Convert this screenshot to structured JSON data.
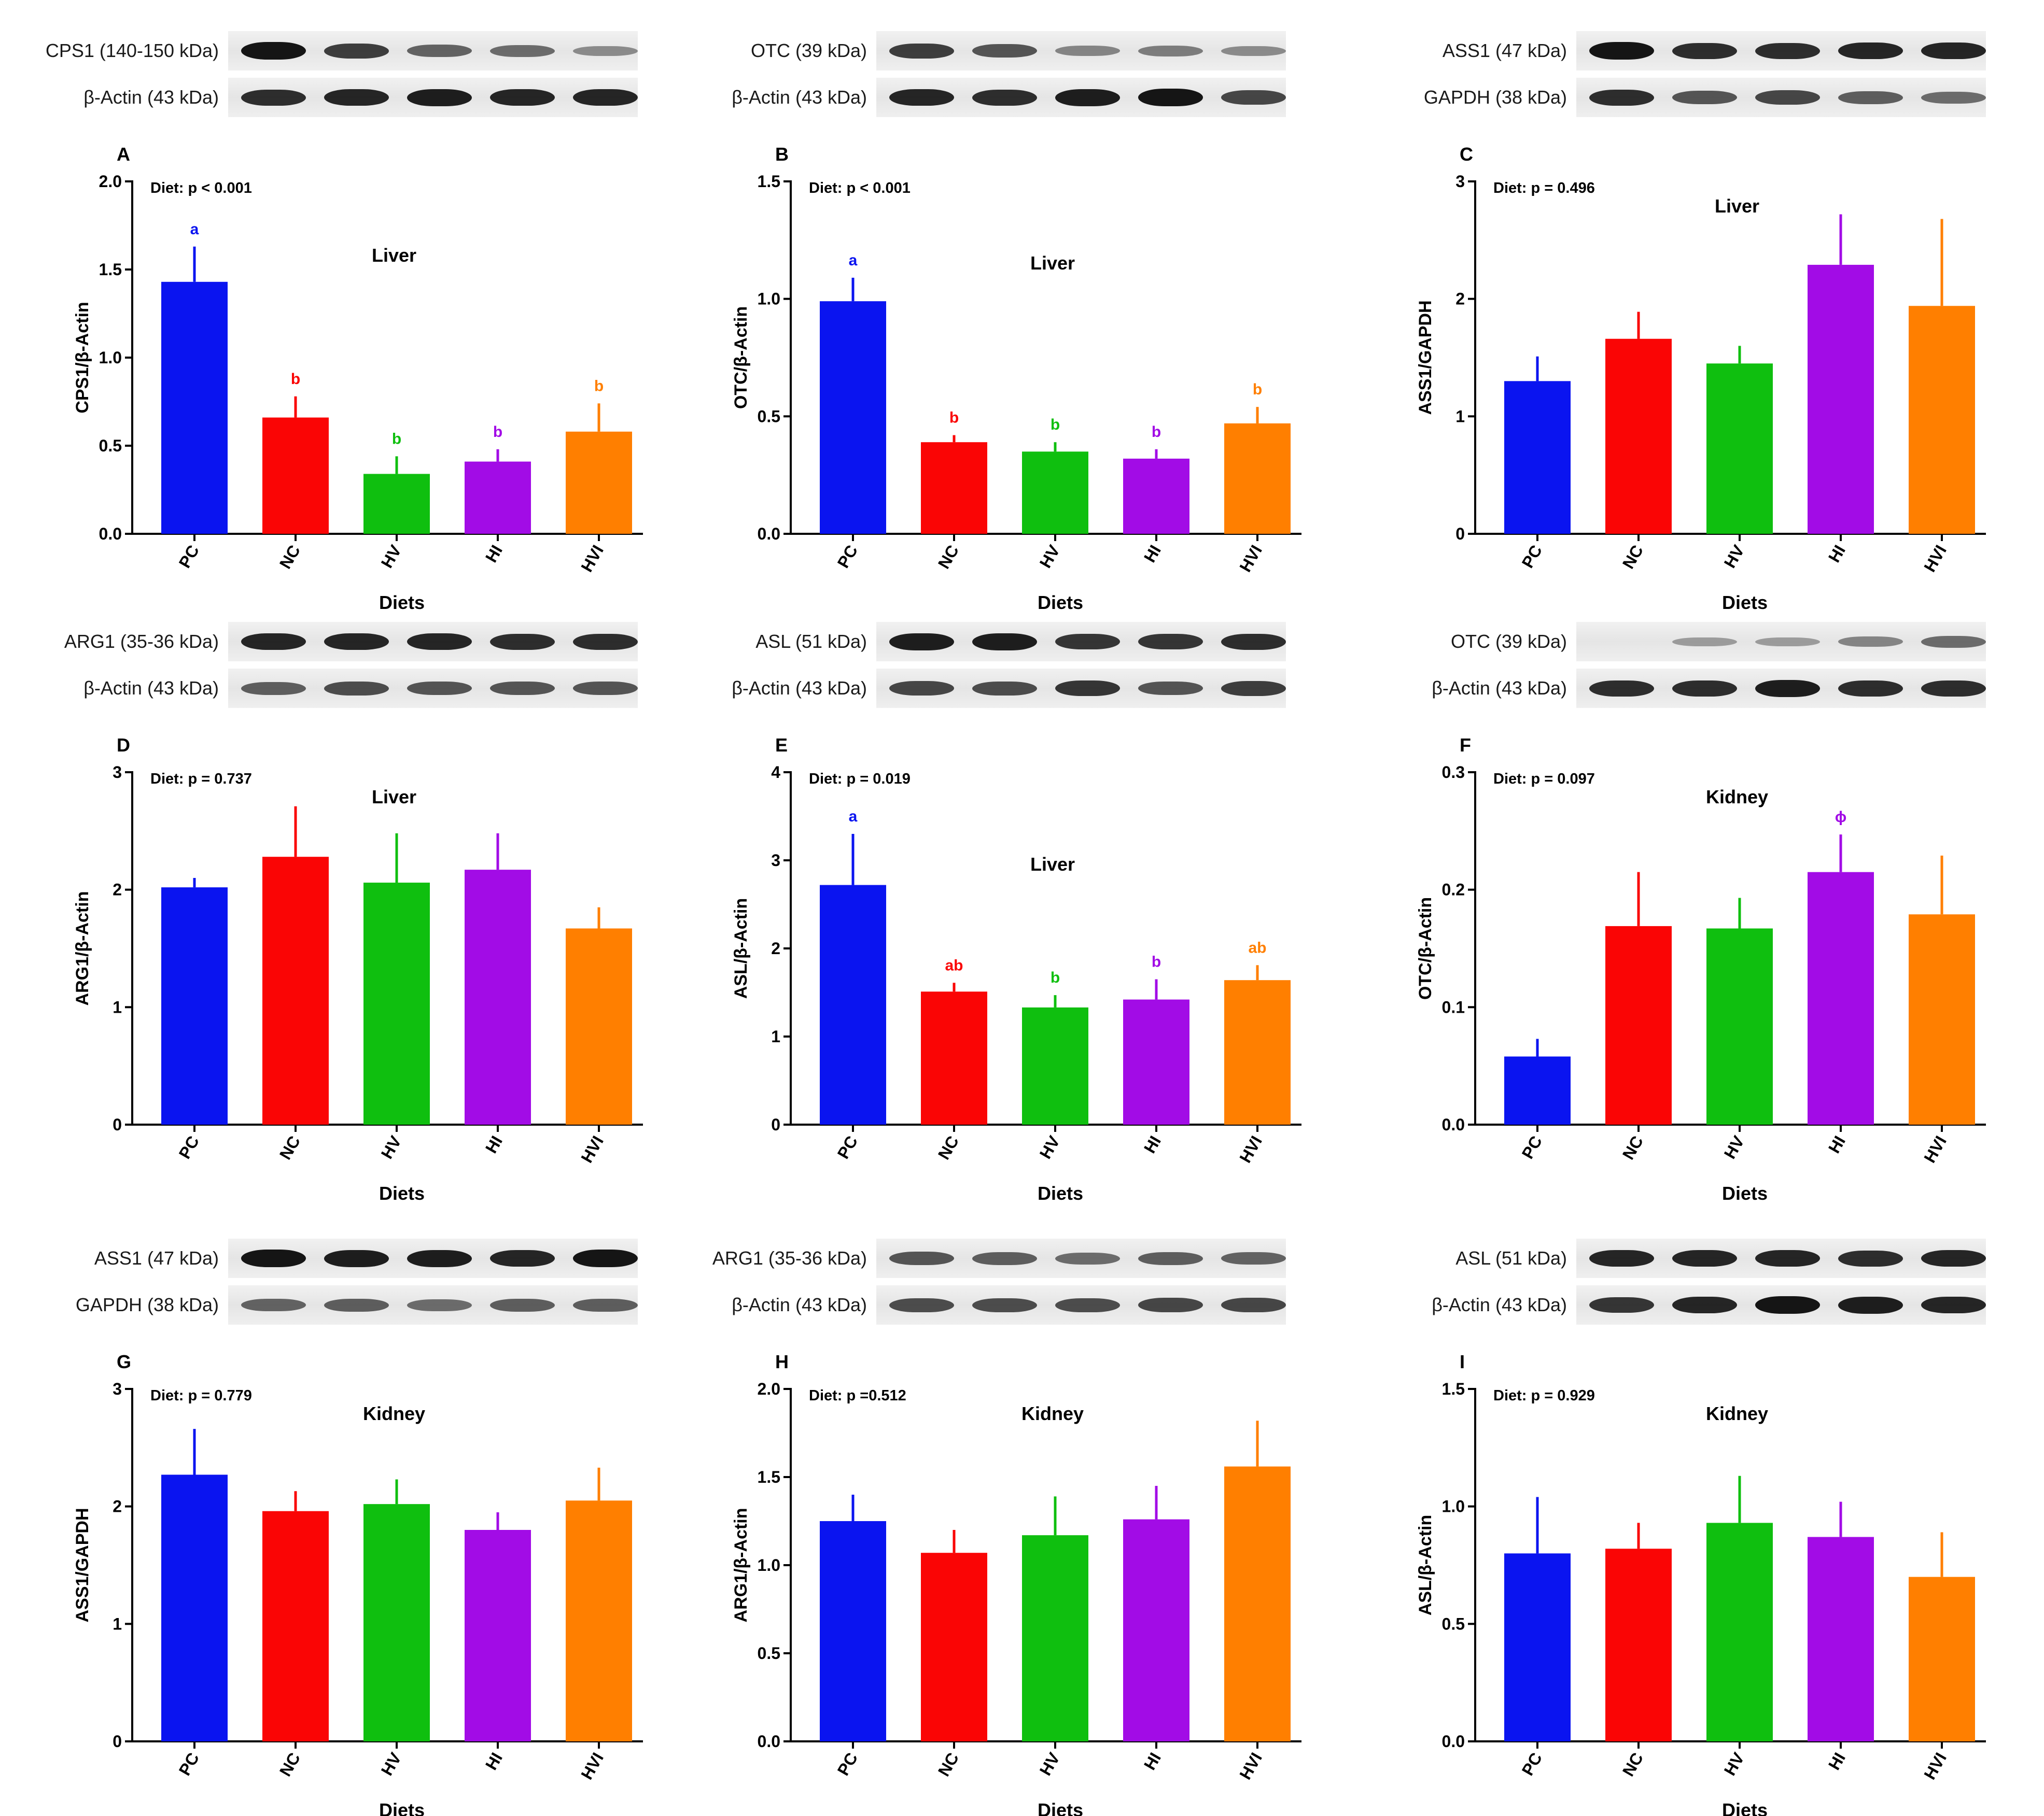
{
  "colors": {
    "PC": "#0a14f0",
    "NC": "#fa0505",
    "HV": "#0fbf0f",
    "HI": "#a20ce6",
    "HVI": "#ff7f00"
  },
  "panels": [
    {
      "letter": "A",
      "blots": [
        {
          "label": "CPS1 (140-150 kDa)",
          "intensity": [
            1.0,
            0.75,
            0.5,
            0.45,
            0.25
          ]
        },
        {
          "label": "β-Actin (43 kDa)",
          "intensity": [
            0.85,
            0.9,
            0.95,
            0.9,
            0.9
          ]
        }
      ],
      "chart_data": {
        "type": "bar",
        "title": "Liver",
        "stat": "Diet: p < 0.001",
        "xlabel": "Diets",
        "ylabel": "CPS1/β-Actin",
        "ylim": [
          0,
          2.0
        ],
        "yticks": [
          "0.0",
          "0.5",
          "1.0",
          "1.5",
          "2.0"
        ],
        "categories": [
          "PC",
          "NC",
          "HV",
          "HI",
          "HVI"
        ],
        "values": [
          1.43,
          0.66,
          0.34,
          0.41,
          0.58
        ],
        "errors": [
          0.2,
          0.12,
          0.1,
          0.07,
          0.16
        ],
        "letters": [
          "a",
          "b",
          "b",
          "b",
          "b"
        ]
      }
    },
    {
      "letter": "B",
      "blots": [
        {
          "label": "OTC (39 kDa)",
          "intensity": [
            0.75,
            0.6,
            0.3,
            0.35,
            0.25
          ]
        },
        {
          "label": "β-Actin (43 kDa)",
          "intensity": [
            0.9,
            0.85,
            0.95,
            1.0,
            0.7
          ]
        }
      ],
      "chart_data": {
        "type": "bar",
        "title": "Liver",
        "stat": "Diet: p < 0.001",
        "xlabel": "Diets",
        "ylabel": "OTC/β-Actin",
        "ylim": [
          0,
          1.5
        ],
        "yticks": [
          "0.0",
          "0.5",
          "1.0",
          "1.5"
        ],
        "categories": [
          "PC",
          "NC",
          "HV",
          "HI",
          "HVI"
        ],
        "values": [
          0.99,
          0.39,
          0.35,
          0.32,
          0.47
        ],
        "errors": [
          0.1,
          0.03,
          0.04,
          0.04,
          0.07
        ],
        "letters": [
          "a",
          "b",
          "b",
          "b",
          "b"
        ]
      }
    },
    {
      "letter": "C",
      "blots": [
        {
          "label": "ASS1 (47 kDa)",
          "intensity": [
            1.0,
            0.85,
            0.85,
            0.9,
            0.9
          ]
        },
        {
          "label": "GAPDH (38 kDa)",
          "intensity": [
            0.85,
            0.6,
            0.7,
            0.55,
            0.45
          ]
        }
      ],
      "chart_data": {
        "type": "bar",
        "title": "Liver",
        "stat": "Diet: p = 0.496",
        "xlabel": "Diets",
        "ylabel": "ASS1/GAPDH",
        "ylim": [
          0,
          3
        ],
        "yticks": [
          "0",
          "1",
          "2",
          "3"
        ],
        "categories": [
          "PC",
          "NC",
          "HV",
          "HI",
          "HVI"
        ],
        "values": [
          1.3,
          1.66,
          1.45,
          2.29,
          1.94
        ],
        "errors": [
          0.21,
          0.23,
          0.15,
          0.43,
          0.74
        ],
        "letters": [
          "",
          "",
          "",
          "",
          ""
        ]
      }
    },
    {
      "letter": "D",
      "blots": [
        {
          "label": "ARG1 (35-36 kDa)",
          "intensity": [
            0.9,
            0.9,
            0.9,
            0.85,
            0.85
          ]
        },
        {
          "label": "β-Actin (43 kDa)",
          "intensity": [
            0.55,
            0.65,
            0.6,
            0.6,
            0.6
          ]
        }
      ],
      "chart_data": {
        "type": "bar",
        "title": "Liver",
        "stat": "Diet: p = 0.737",
        "xlabel": "Diets",
        "ylabel": "ARG1/β-Actin",
        "ylim": [
          0,
          3
        ],
        "yticks": [
          "0",
          "1",
          "2",
          "3"
        ],
        "categories": [
          "PC",
          "NC",
          "HV",
          "HI",
          "HVI"
        ],
        "values": [
          2.02,
          2.28,
          2.06,
          2.17,
          1.67
        ],
        "errors": [
          0.08,
          0.43,
          0.42,
          0.31,
          0.18
        ],
        "letters": [
          "",
          "",
          "",
          "",
          ""
        ]
      }
    },
    {
      "letter": "E",
      "blots": [
        {
          "label": "ASL (51 kDa)",
          "intensity": [
            0.95,
            0.95,
            0.8,
            0.8,
            0.85
          ]
        },
        {
          "label": "β-Actin (43 kDa)",
          "intensity": [
            0.7,
            0.65,
            0.8,
            0.6,
            0.75
          ]
        }
      ],
      "chart_data": {
        "type": "bar",
        "title": "Liver",
        "stat": "Diet: p = 0.019",
        "xlabel": "Diets",
        "ylabel": "ASL/β-Actin",
        "ylim": [
          0,
          4
        ],
        "yticks": [
          "0",
          "1",
          "2",
          "3",
          "4"
        ],
        "categories": [
          "PC",
          "NC",
          "HV",
          "HI",
          "HVI"
        ],
        "values": [
          2.72,
          1.51,
          1.33,
          1.42,
          1.64
        ],
        "errors": [
          0.58,
          0.1,
          0.14,
          0.23,
          0.17
        ],
        "letters": [
          "a",
          "ab",
          "b",
          "b",
          "ab"
        ]
      }
    },
    {
      "letter": "F",
      "blots": [
        {
          "label": "OTC (39 kDa)",
          "intensity": [
            0.0,
            0.15,
            0.15,
            0.3,
            0.45
          ]
        },
        {
          "label": "β-Actin (43 kDa)",
          "intensity": [
            0.85,
            0.85,
            0.95,
            0.85,
            0.85
          ]
        }
      ],
      "chart_data": {
        "type": "bar",
        "title": "Kidney",
        "stat": "Diet: p = 0.097",
        "xlabel": "Diets",
        "ylabel": "OTC/β-Actin",
        "ylim": [
          0,
          0.3
        ],
        "yticks": [
          "0.0",
          "0.1",
          "0.2",
          "0.3"
        ],
        "categories": [
          "PC",
          "NC",
          "HV",
          "HI",
          "HVI"
        ],
        "values": [
          0.058,
          0.169,
          0.167,
          0.215,
          0.179
        ],
        "errors": [
          0.015,
          0.046,
          0.026,
          0.032,
          0.05
        ],
        "letters": [
          "",
          "",
          "",
          "ϕ",
          ""
        ]
      }
    },
    {
      "letter": "G",
      "blots": [
        {
          "label": "ASS1 (47 kDa)",
          "intensity": [
            1.0,
            0.95,
            0.95,
            0.9,
            1.0
          ]
        },
        {
          "label": "GAPDH (38 kDa)",
          "intensity": [
            0.5,
            0.55,
            0.45,
            0.55,
            0.55
          ]
        }
      ],
      "chart_data": {
        "type": "bar",
        "title": "Kidney",
        "stat": "Diet: p = 0.779",
        "xlabel": "Diets",
        "ylabel": "ASS1/GAPDH",
        "ylim": [
          0,
          3
        ],
        "yticks": [
          "0",
          "1",
          "2",
          "3"
        ],
        "categories": [
          "PC",
          "NC",
          "HV",
          "HI",
          "HVI"
        ],
        "values": [
          2.27,
          1.96,
          2.02,
          1.8,
          2.05
        ],
        "errors": [
          0.39,
          0.17,
          0.21,
          0.15,
          0.28
        ],
        "letters": [
          "",
          "",
          "",
          "",
          ""
        ]
      }
    },
    {
      "letter": "H",
      "blots": [
        {
          "label": "ARG1 (35-36 kDa)",
          "intensity": [
            0.6,
            0.55,
            0.45,
            0.55,
            0.5
          ]
        },
        {
          "label": "β-Actin (43 kDa)",
          "intensity": [
            0.65,
            0.65,
            0.65,
            0.7,
            0.7
          ]
        }
      ],
      "chart_data": {
        "type": "bar",
        "title": "Kidney",
        "stat": "Diet: p =0.512",
        "xlabel": "Diets",
        "ylabel": "ARG1/β-Actin",
        "ylim": [
          0,
          2.0
        ],
        "yticks": [
          "0.0",
          "0.5",
          "1.0",
          "1.5",
          "2.0"
        ],
        "categories": [
          "PC",
          "NC",
          "HV",
          "HI",
          "HVI"
        ],
        "values": [
          1.25,
          1.07,
          1.17,
          1.26,
          1.56
        ],
        "errors": [
          0.15,
          0.13,
          0.22,
          0.19,
          0.26
        ],
        "letters": [
          "",
          "",
          "",
          "",
          ""
        ]
      }
    },
    {
      "letter": "I",
      "blots": [
        {
          "label": "ASL (51 kDa)",
          "intensity": [
            0.9,
            0.9,
            0.9,
            0.85,
            0.9
          ]
        },
        {
          "label": "β-Actin (43 kDa)",
          "intensity": [
            0.8,
            0.9,
            1.0,
            0.95,
            0.9
          ]
        }
      ],
      "chart_data": {
        "type": "bar",
        "title": "Kidney",
        "stat": "Diet: p = 0.929",
        "xlabel": "Diets",
        "ylabel": "ASL/β-Actin",
        "ylim": [
          0,
          1.5
        ],
        "yticks": [
          "0.0",
          "0.5",
          "1.0",
          "1.5"
        ],
        "categories": [
          "PC",
          "NC",
          "HV",
          "HI",
          "HVI"
        ],
        "values": [
          0.8,
          0.82,
          0.93,
          0.87,
          0.7
        ],
        "errors": [
          0.24,
          0.11,
          0.2,
          0.15,
          0.19
        ],
        "letters": [
          "",
          "",
          "",
          "",
          ""
        ]
      }
    }
  ]
}
